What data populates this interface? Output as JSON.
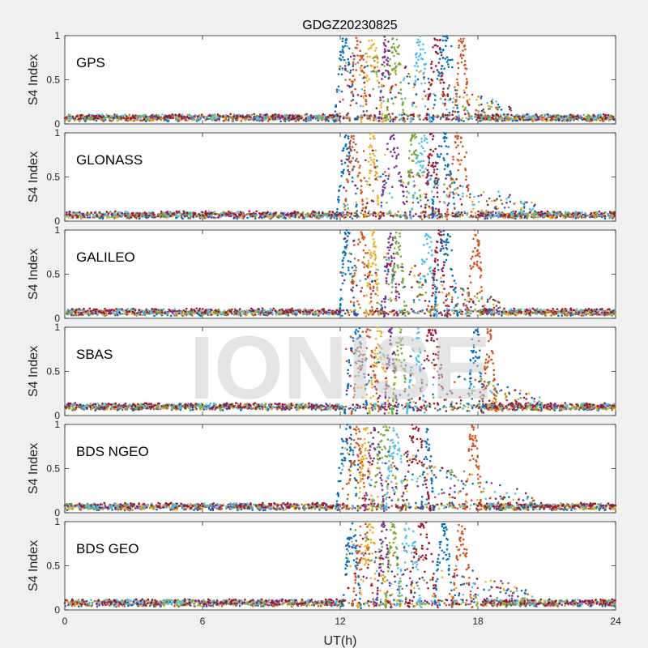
{
  "figure": {
    "title": "GDGZ20230825",
    "xlabel": "UT(h)",
    "watermark": "IONISE",
    "background": "#f0f0f0"
  },
  "chart_data": {
    "type": "scatter",
    "x_ticks": [
      0,
      6,
      12,
      18,
      24
    ],
    "xlim": [
      0,
      24
    ],
    "y_ticks": [
      0,
      0.5,
      1
    ],
    "ylim": [
      0,
      1
    ],
    "ylabel": "S4 Index",
    "colors": [
      "#0072BD",
      "#D95319",
      "#EDB120",
      "#7E2F8E",
      "#77AC30",
      "#4DBEEE",
      "#A2142F"
    ],
    "panels": [
      {
        "name": "GPS",
        "quiet_level": 0.07,
        "disturbed_window": [
          11.9,
          19.5
        ],
        "peak": 1.0,
        "peak_hours": [
          12.2,
          12.8,
          13.4,
          14.0,
          14.4,
          15.5,
          16.2,
          16.6,
          17.3
        ]
      },
      {
        "name": "GLONASS",
        "quiet_level": 0.07,
        "disturbed_window": [
          12.0,
          20.5
        ],
        "peak": 1.0,
        "peak_hours": [
          12.3,
          12.6,
          13.4,
          14.3,
          15.2,
          15.6,
          16.0,
          16.5,
          17.2
        ]
      },
      {
        "name": "GALILEO",
        "quiet_level": 0.07,
        "disturbed_window": [
          12.0,
          19.0
        ],
        "peak": 1.0,
        "peak_hours": [
          12.3,
          12.9,
          13.4,
          14.2,
          14.5,
          15.8,
          16.3,
          16.6,
          17.9
        ]
      },
      {
        "name": "SBAS",
        "quiet_level": 0.1,
        "disturbed_window": [
          12.2,
          20.8
        ],
        "peak": 1.0,
        "peak_hours": [
          12.7,
          13.1,
          13.7,
          14.2,
          14.6,
          15.3,
          16.0,
          17.9,
          18.5
        ]
      },
      {
        "name": "BDS NGEO",
        "quiet_level": 0.07,
        "disturbed_window": [
          12.0,
          20.5
        ],
        "peak": 1.0,
        "peak_hours": [
          12.3,
          12.7,
          13.1,
          13.5,
          14.0,
          14.4,
          15.3,
          15.8,
          17.8
        ]
      },
      {
        "name": "BDS GEO",
        "quiet_level": 0.08,
        "disturbed_window": [
          12.2,
          20.5
        ],
        "peak": 1.0,
        "peak_hours": [
          12.5,
          13.0,
          13.4,
          13.9,
          14.3,
          15.0,
          15.6,
          16.5,
          17.3
        ]
      }
    ]
  }
}
